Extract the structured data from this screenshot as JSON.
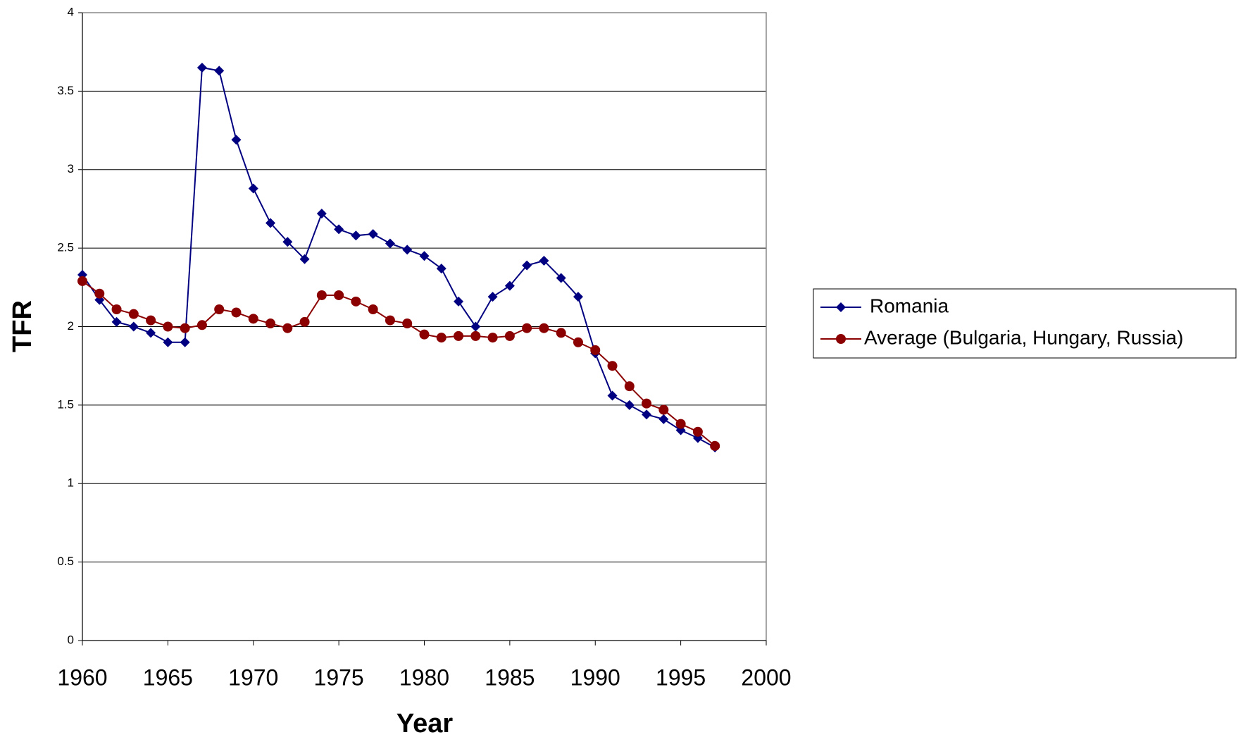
{
  "chart_data": {
    "type": "line",
    "x_label": "Year",
    "y_label": "TFR",
    "x": [
      1960,
      1961,
      1962,
      1963,
      1964,
      1965,
      1966,
      1967,
      1968,
      1969,
      1970,
      1971,
      1972,
      1973,
      1974,
      1975,
      1976,
      1977,
      1978,
      1979,
      1980,
      1981,
      1982,
      1983,
      1984,
      1985,
      1986,
      1987,
      1988,
      1989,
      1990,
      1991,
      1992,
      1993,
      1994,
      1995,
      1996,
      1997
    ],
    "series": [
      {
        "name": "Romania",
        "color": "#000080",
        "marker": "diamond",
        "values": [
          2.33,
          2.17,
          2.03,
          2.0,
          1.96,
          1.9,
          1.9,
          3.65,
          3.63,
          3.19,
          2.88,
          2.66,
          2.54,
          2.43,
          2.72,
          2.62,
          2.58,
          2.59,
          2.53,
          2.49,
          2.45,
          2.37,
          2.16,
          2.0,
          2.19,
          2.26,
          2.39,
          2.42,
          2.31,
          2.19,
          1.83,
          1.56,
          1.5,
          1.44,
          1.41,
          1.34,
          1.29,
          1.23
        ]
      },
      {
        "name": "Average (Bulgaria, Hungary, Russia)",
        "color": "#8b0000",
        "marker": "circle",
        "values": [
          2.29,
          2.21,
          2.11,
          2.08,
          2.04,
          2.0,
          1.99,
          2.01,
          2.11,
          2.09,
          2.05,
          2.02,
          1.99,
          2.03,
          2.2,
          2.2,
          2.16,
          2.11,
          2.04,
          2.02,
          1.95,
          1.93,
          1.94,
          1.94,
          1.93,
          1.94,
          1.99,
          1.99,
          1.96,
          1.9,
          1.85,
          1.75,
          1.62,
          1.51,
          1.47,
          1.38,
          1.33,
          1.24
        ]
      }
    ],
    "xlim": [
      1960,
      2000
    ],
    "xticks": [
      1960,
      1965,
      1970,
      1975,
      1980,
      1985,
      1990,
      1995,
      2000
    ],
    "ylim": [
      0,
      4
    ],
    "yticks": [
      0,
      0.5,
      1,
      1.5,
      2,
      2.5,
      3,
      3.5,
      4
    ],
    "grid": true,
    "legend": "right"
  }
}
